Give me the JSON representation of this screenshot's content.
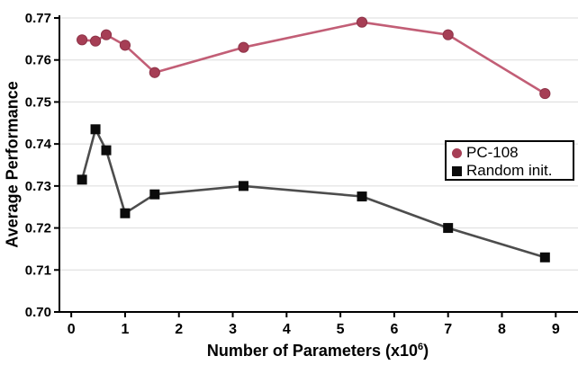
{
  "chart_data": {
    "type": "line",
    "title": "",
    "ylabel": "Average Performance",
    "xlabel": {
      "pre": "Number of Parameters (x10",
      "sup": "6",
      "post": ")"
    },
    "xlim": [
      -0.22,
      9.38
    ],
    "ylim": [
      0.7,
      0.77
    ],
    "grid": "horizontal",
    "grid_color": "#dbdbdb",
    "axis_color": "#000000",
    "x_ticks": [
      0,
      1,
      2,
      3,
      4,
      5,
      6,
      7,
      8,
      9
    ],
    "x_tick_labels": [
      "0",
      "1",
      "2",
      "3",
      "4",
      "5",
      "6",
      "7",
      "8",
      "9"
    ],
    "y_ticks": [
      0.7,
      0.71,
      0.72,
      0.73,
      0.74,
      0.75,
      0.76,
      0.77
    ],
    "y_tick_labels": [
      "0.70",
      "0.71",
      "0.72",
      "0.73",
      "0.74",
      "0.75",
      "0.76",
      "0.77"
    ],
    "legend": {
      "position": "right-middle",
      "items": [
        "PC-108",
        "Random init."
      ]
    },
    "series": [
      {
        "name": "PC-108",
        "marker": "circle",
        "marker_color": "#a63e55",
        "marker_edge": "#8e3348",
        "line_color": "#c25e76",
        "x": [
          0.2,
          0.45,
          0.65,
          1.0,
          1.55,
          3.2,
          5.4,
          7.0,
          8.8
        ],
        "y": [
          0.7648,
          0.7645,
          0.766,
          0.7635,
          0.757,
          0.763,
          0.769,
          0.766,
          0.752
        ]
      },
      {
        "name": "Random init.",
        "marker": "square",
        "marker_color": "#0b0b0b",
        "marker_edge": "#0b0b0b",
        "line_color": "#4d4d4d",
        "x": [
          0.2,
          0.45,
          0.65,
          1.0,
          1.55,
          3.2,
          5.4,
          7.0,
          8.8
        ],
        "y": [
          0.7315,
          0.7435,
          0.7385,
          0.7235,
          0.728,
          0.73,
          0.7275,
          0.72,
          0.713
        ]
      }
    ]
  }
}
